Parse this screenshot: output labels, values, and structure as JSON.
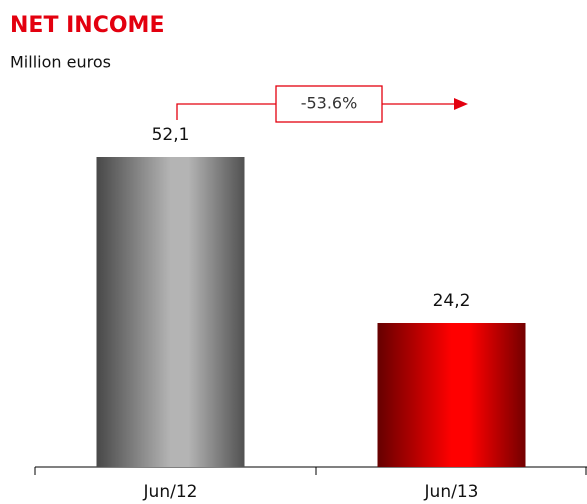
{
  "chart_data": {
    "type": "bar",
    "title": "NET INCOME",
    "subtitle": "Million euros",
    "categories": [
      "Jun/12",
      "Jun/13"
    ],
    "values": [
      52.1,
      24.2
    ],
    "value_labels": [
      "52,1",
      "24,2"
    ],
    "colors": [
      "#b4b4b4",
      "#ff0000"
    ],
    "annotation": "-53.6%"
  }
}
